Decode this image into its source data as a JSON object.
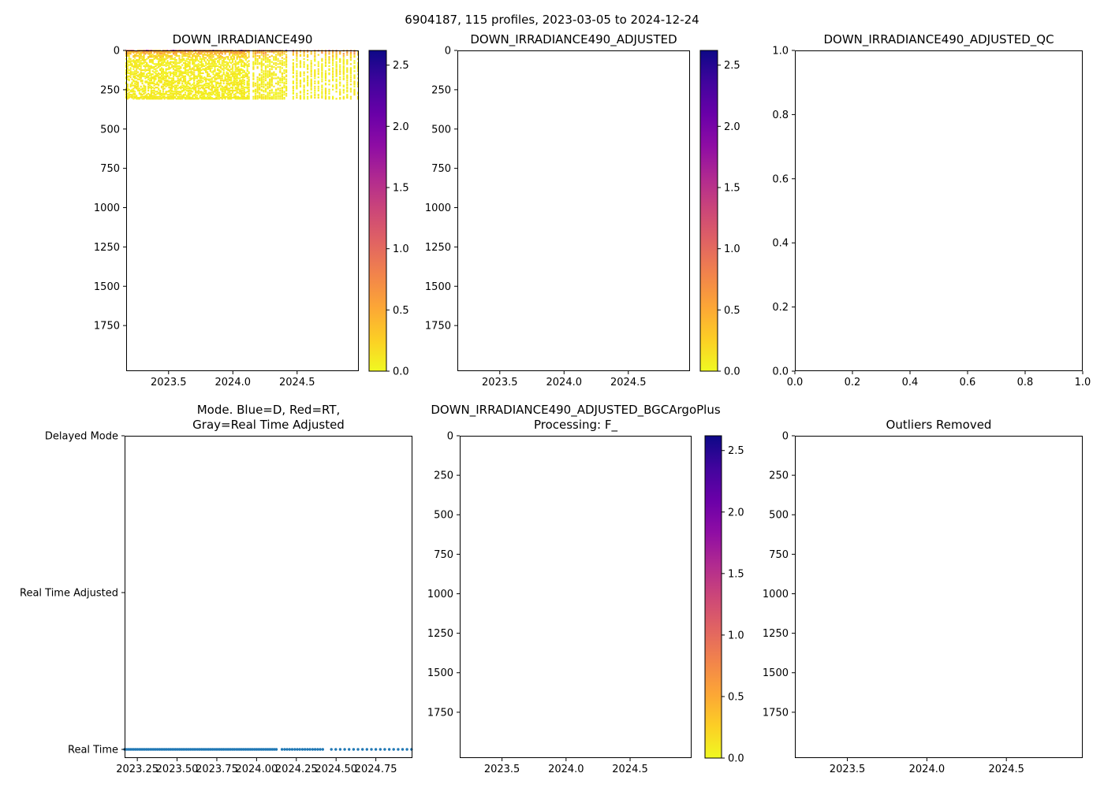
{
  "figure": {
    "title": "6904187, 115 profiles, 2023-03-05 to 2024-12-24",
    "background": "#ffffff",
    "text_color": "#000000"
  },
  "colormap": {
    "name": "plasma_r",
    "plasma_stops": [
      "#0d0887",
      "#41049d",
      "#6a00a8",
      "#8f0da4",
      "#b12a90",
      "#cc4778",
      "#e16462",
      "#f2844b",
      "#fca636",
      "#fcce25",
      "#f0f921"
    ]
  },
  "chart_data": [
    {
      "type": "scatter",
      "title_lines": [
        "DOWN_IRRADIANCE490"
      ],
      "xlim": [
        2023.17,
        2024.98
      ],
      "xtick_values": [
        2023.5,
        2024.0,
        2024.5
      ],
      "xtick_labels": [
        "2023.5",
        "2024.0",
        "2024.5"
      ],
      "ylim": [
        2040,
        0
      ],
      "ytick_values": [
        0,
        250,
        500,
        750,
        1000,
        1250,
        1500,
        1750
      ],
      "ytick_labels": [
        "0",
        "250",
        "500",
        "750",
        "1000",
        "1250",
        "1500",
        "1750"
      ],
      "grid": false,
      "colorbar": {
        "cmap": "plasma_r",
        "vmin": 0.0,
        "vmax": 2.62,
        "tick_values": [
          0.0,
          0.5,
          1.0,
          1.5,
          2.0,
          2.5
        ],
        "tick_labels": [
          "0.0",
          "0.5",
          "1.0",
          "1.5",
          "2.0",
          "2.5"
        ]
      },
      "series": {
        "description": "115 downwelling-irradiance profiles; data confined to upper ~310 m; surface values ~0.5-2.6 (orange/red, occasional purple), decaying to ~0 (yellow) below ~50 m; profiles dense until ~2024.43, sparser afterwards",
        "time_segments": [
          {
            "start": 2023.17,
            "end": 2024.13,
            "step": 0.0115
          },
          {
            "start": 2024.16,
            "end": 2024.43,
            "step": 0.016
          },
          {
            "start": 2024.47,
            "end": 2024.98,
            "step": 0.028
          }
        ],
        "depth_extent": [
          0,
          310
        ],
        "surface_value_range": [
          0.45,
          2.6
        ],
        "deep_value_range": [
          0.0,
          0.4
        ]
      }
    },
    {
      "type": "scatter",
      "title_lines": [
        "DOWN_IRRADIANCE490_ADJUSTED"
      ],
      "xlim": [
        2023.17,
        2024.98
      ],
      "xtick_values": [
        2023.5,
        2024.0,
        2024.5
      ],
      "xtick_labels": [
        "2023.5",
        "2024.0",
        "2024.5"
      ],
      "ylim": [
        2040,
        0
      ],
      "ytick_values": [
        0,
        250,
        500,
        750,
        1000,
        1250,
        1500,
        1750
      ],
      "ytick_labels": [
        "0",
        "250",
        "500",
        "750",
        "1000",
        "1250",
        "1500",
        "1750"
      ],
      "grid": false,
      "colorbar": {
        "cmap": "plasma_r",
        "vmin": 0.0,
        "vmax": 2.62,
        "tick_values": [
          0.0,
          0.5,
          1.0,
          1.5,
          2.0,
          2.5
        ],
        "tick_labels": [
          "0.0",
          "0.5",
          "1.0",
          "1.5",
          "2.0",
          "2.5"
        ]
      },
      "series": {
        "description": "no adjusted data plotted (empty axes)",
        "points": []
      }
    },
    {
      "type": "scatter",
      "title_lines": [
        "DOWN_IRRADIANCE490_ADJUSTED_QC"
      ],
      "xlim": [
        0.0,
        1.0
      ],
      "xtick_values": [
        0.0,
        0.2,
        0.4,
        0.6,
        0.8,
        1.0
      ],
      "xtick_labels": [
        "0.0",
        "0.2",
        "0.4",
        "0.6",
        "0.8",
        "1.0"
      ],
      "ylim": [
        0.0,
        1.0
      ],
      "ytick_values": [
        1.0,
        0.8,
        0.6,
        0.4,
        0.2,
        0.0
      ],
      "ytick_labels": [
        "1.0",
        "0.8",
        "0.6",
        "0.4",
        "0.2",
        "0.0"
      ],
      "grid": false,
      "series": {
        "description": "no QC data plotted (empty axes)",
        "points": []
      }
    },
    {
      "type": "event-scatter",
      "title_lines": [
        "Mode. Blue=D, Red=RT,",
        "Gray=Real Time Adjusted"
      ],
      "xlim": [
        2023.17,
        2024.98
      ],
      "xtick_values": [
        2023.25,
        2023.5,
        2023.75,
        2024.0,
        2024.25,
        2024.5,
        2024.75
      ],
      "xtick_labels": [
        "2023.25",
        "2023.50",
        "2023.75",
        "2024.00",
        "2024.25",
        "2024.50",
        "2024.75"
      ],
      "categories_top_to_bottom": [
        "Delayed Mode",
        "Real Time Adjusted",
        "Real Time"
      ],
      "grid": false,
      "marker_color": "#1f77b4",
      "series": {
        "description": "all 115 profiles are Real Time mode: row of blue dots along the Real Time level; dense until ~2024.43, evenly spaced sparse dots from ~2024.47 to 2024.98",
        "mode_for_all_points": "Real Time",
        "time_segments": [
          {
            "start": 2023.17,
            "end": 2024.13,
            "step": 0.0115
          },
          {
            "start": 2024.16,
            "end": 2024.43,
            "step": 0.016
          },
          {
            "start": 2024.47,
            "end": 2024.98,
            "step": 0.028
          }
        ]
      }
    },
    {
      "type": "scatter",
      "title_lines": [
        "DOWN_IRRADIANCE490_ADJUSTED_BGCArgoPlus",
        "Processing: F_"
      ],
      "xlim": [
        2023.17,
        2024.98
      ],
      "xtick_values": [
        2023.5,
        2024.0,
        2024.5
      ],
      "xtick_labels": [
        "2023.5",
        "2024.0",
        "2024.5"
      ],
      "ylim": [
        2040,
        0
      ],
      "ytick_values": [
        0,
        250,
        500,
        750,
        1000,
        1250,
        1500,
        1750
      ],
      "ytick_labels": [
        "0",
        "250",
        "500",
        "750",
        "1000",
        "1250",
        "1500",
        "1750"
      ],
      "grid": false,
      "colorbar": {
        "cmap": "plasma_r",
        "vmin": 0.0,
        "vmax": 2.62,
        "tick_values": [
          0.0,
          0.5,
          1.0,
          1.5,
          2.0,
          2.5
        ],
        "tick_labels": [
          "0.0",
          "0.5",
          "1.0",
          "1.5",
          "2.0",
          "2.5"
        ]
      },
      "series": {
        "description": "no BGCArgoPlus-processed data plotted (empty axes)",
        "points": []
      }
    },
    {
      "type": "scatter",
      "title_lines": [
        "Outliers Removed"
      ],
      "xlim": [
        2023.17,
        2024.98
      ],
      "xtick_values": [
        2023.5,
        2024.0,
        2024.5
      ],
      "xtick_labels": [
        "2023.5",
        "2024.0",
        "2024.5"
      ],
      "ylim": [
        2040,
        0
      ],
      "ytick_values": [
        0,
        250,
        500,
        750,
        1000,
        1250,
        1500,
        1750
      ],
      "ytick_labels": [
        "0",
        "250",
        "500",
        "750",
        "1000",
        "1250",
        "1500",
        "1750"
      ],
      "grid": false,
      "series": {
        "description": "no outlier-removed data plotted (empty axes)",
        "points": []
      }
    }
  ]
}
